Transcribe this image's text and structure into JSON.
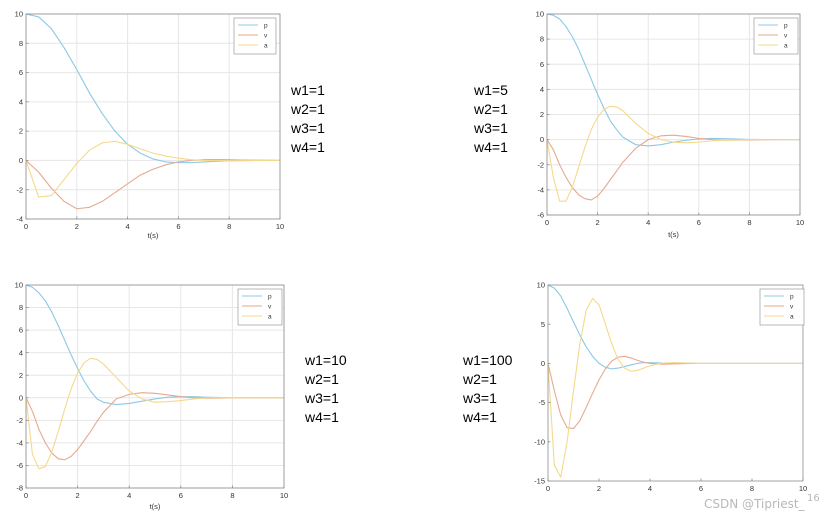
{
  "chart_data": [
    {
      "type": "line",
      "xlabel": "t(s)",
      "ylabel": "",
      "xlim": [
        0,
        10
      ],
      "ylim": [
        -4,
        10
      ],
      "xticks": [
        0,
        2,
        4,
        6,
        8,
        10
      ],
      "yticks": [
        -4,
        -2,
        0,
        2,
        4,
        6,
        8,
        10
      ],
      "grid": true,
      "legend_position": "top-right",
      "x": [
        0,
        0.5,
        1,
        1.5,
        2,
        2.5,
        3,
        3.5,
        4,
        4.5,
        5,
        5.5,
        6,
        6.5,
        7,
        7.5,
        8,
        8.5,
        9,
        9.5,
        10
      ],
      "series": [
        {
          "name": "p",
          "color": "#8cc8e6",
          "values": [
            10,
            9.8,
            9.0,
            7.7,
            6.2,
            4.6,
            3.2,
            2.0,
            1.1,
            0.5,
            0.1,
            -0.1,
            -0.15,
            -0.15,
            -0.1,
            -0.06,
            -0.03,
            -0.01,
            0,
            0,
            0
          ]
        },
        {
          "name": "v",
          "color": "#e6a98f",
          "values": [
            0,
            -0.8,
            -1.9,
            -2.8,
            -3.3,
            -3.2,
            -2.8,
            -2.2,
            -1.6,
            -1.0,
            -0.6,
            -0.3,
            -0.1,
            0,
            0.05,
            0.06,
            0.05,
            0.03,
            0.02,
            0.01,
            0
          ]
        },
        {
          "name": "a",
          "color": "#f5d98a",
          "values": [
            0,
            -2.5,
            -2.4,
            -1.3,
            -0.2,
            0.7,
            1.2,
            1.3,
            1.1,
            0.8,
            0.5,
            0.3,
            0.15,
            0.05,
            0,
            -0.02,
            -0.03,
            -0.02,
            -0.01,
            0,
            0
          ]
        }
      ]
    },
    {
      "type": "line",
      "xlabel": "t(s)",
      "ylabel": "",
      "xlim": [
        0,
        10
      ],
      "ylim": [
        -6,
        10
      ],
      "xticks": [
        0,
        2,
        4,
        6,
        8,
        10
      ],
      "yticks": [
        -6,
        -4,
        -2,
        0,
        2,
        4,
        6,
        8,
        10
      ],
      "grid": true,
      "legend_position": "top-right",
      "x": [
        0,
        0.25,
        0.5,
        0.75,
        1,
        1.25,
        1.5,
        1.75,
        2,
        2.25,
        2.5,
        2.75,
        3,
        3.5,
        4,
        4.5,
        5,
        5.5,
        6,
        6.5,
        7,
        8,
        9,
        10
      ],
      "series": [
        {
          "name": "p",
          "color": "#8cc8e6",
          "values": [
            10,
            9.9,
            9.6,
            9.0,
            8.2,
            7.2,
            6.0,
            4.8,
            3.6,
            2.5,
            1.5,
            0.8,
            0.2,
            -0.4,
            -0.5,
            -0.4,
            -0.2,
            -0.05,
            0.05,
            0.1,
            0.08,
            0.02,
            0,
            0
          ]
        },
        {
          "name": "v",
          "color": "#e6a98f",
          "values": [
            0,
            -0.8,
            -2.0,
            -3.0,
            -3.8,
            -4.4,
            -4.7,
            -4.8,
            -4.5,
            -3.9,
            -3.2,
            -2.5,
            -1.8,
            -0.7,
            0,
            0.3,
            0.35,
            0.25,
            0.1,
            0,
            -0.05,
            -0.03,
            0,
            0
          ]
        },
        {
          "name": "a",
          "color": "#f5d98a",
          "values": [
            0,
            -3.0,
            -4.9,
            -4.9,
            -3.8,
            -2.2,
            -0.6,
            0.8,
            1.8,
            2.4,
            2.65,
            2.6,
            2.3,
            1.3,
            0.5,
            0,
            -0.2,
            -0.25,
            -0.2,
            -0.1,
            -0.05,
            0,
            0,
            0
          ]
        }
      ]
    },
    {
      "type": "line",
      "xlabel": "t(s)",
      "ylabel": "",
      "xlim": [
        0,
        10
      ],
      "ylim": [
        -8,
        10
      ],
      "xticks": [
        0,
        2,
        4,
        6,
        8,
        10
      ],
      "yticks": [
        -8,
        -6,
        -4,
        -2,
        0,
        2,
        4,
        6,
        8,
        10
      ],
      "grid": true,
      "legend_position": "top-right",
      "x": [
        0,
        0.25,
        0.5,
        0.75,
        1,
        1.25,
        1.5,
        1.75,
        2,
        2.25,
        2.5,
        2.75,
        3,
        3.5,
        4,
        4.5,
        5,
        5.5,
        6,
        6.5,
        7,
        8,
        9,
        10
      ],
      "series": [
        {
          "name": "p",
          "color": "#8cc8e6",
          "values": [
            10,
            9.8,
            9.3,
            8.6,
            7.6,
            6.4,
            5.1,
            3.8,
            2.6,
            1.5,
            0.6,
            -0.1,
            -0.4,
            -0.6,
            -0.5,
            -0.3,
            -0.1,
            0.05,
            0.1,
            0.1,
            0.05,
            0,
            0,
            0
          ]
        },
        {
          "name": "v",
          "color": "#e6a98f",
          "values": [
            0,
            -1.2,
            -2.8,
            -4.0,
            -4.9,
            -5.4,
            -5.5,
            -5.2,
            -4.6,
            -3.8,
            -3.0,
            -2.1,
            -1.3,
            -0.1,
            0.3,
            0.45,
            0.4,
            0.25,
            0.1,
            0,
            -0.05,
            -0.02,
            0,
            0
          ]
        },
        {
          "name": "a",
          "color": "#f5d98a",
          "values": [
            0,
            -5.0,
            -6.3,
            -6.1,
            -4.8,
            -3.0,
            -1.0,
            0.8,
            2.2,
            3.1,
            3.5,
            3.4,
            3.0,
            1.8,
            0.6,
            -0.1,
            -0.4,
            -0.35,
            -0.25,
            -0.1,
            0,
            0,
            0,
            0
          ]
        }
      ]
    },
    {
      "type": "line",
      "xlabel": "",
      "ylabel": "",
      "xlim": [
        0,
        10
      ],
      "ylim": [
        -15,
        10
      ],
      "xticks": [
        0,
        2,
        4,
        6,
        8,
        10
      ],
      "yticks": [
        -15,
        -10,
        -5,
        0,
        5,
        10
      ],
      "grid": false,
      "legend_position": "top-right",
      "x": [
        0,
        0.25,
        0.5,
        0.75,
        1,
        1.25,
        1.5,
        1.75,
        2,
        2.25,
        2.5,
        2.75,
        3,
        3.25,
        3.5,
        3.75,
        4,
        4.5,
        5,
        5.5,
        6,
        7,
        8,
        9,
        10
      ],
      "series": [
        {
          "name": "p",
          "color": "#8cc8e6",
          "values": [
            10,
            9.6,
            8.6,
            7.0,
            5.3,
            3.6,
            2.1,
            0.9,
            0.0,
            -0.5,
            -0.7,
            -0.6,
            -0.4,
            -0.2,
            0,
            0.1,
            0.1,
            0.05,
            0,
            0,
            0,
            0,
            0,
            0,
            0
          ]
        },
        {
          "name": "v",
          "color": "#e6a98f",
          "values": [
            0,
            -3.5,
            -6.6,
            -8.2,
            -8.3,
            -7.3,
            -5.6,
            -3.8,
            -2.1,
            -0.7,
            0.3,
            0.8,
            0.9,
            0.7,
            0.4,
            0.15,
            0.0,
            -0.1,
            -0.05,
            0,
            0,
            0,
            0,
            0,
            0
          ]
        },
        {
          "name": "a",
          "color": "#f5d98a",
          "values": [
            0,
            -13.0,
            -14.5,
            -10.0,
            -3.5,
            2.5,
            6.8,
            8.3,
            7.5,
            5.0,
            2.5,
            0.5,
            -0.6,
            -1.0,
            -0.9,
            -0.6,
            -0.3,
            0.05,
            0.1,
            0.05,
            0,
            0,
            0,
            0,
            0
          ]
        }
      ]
    }
  ],
  "weights": [
    [
      "w1=1",
      "w2=1",
      "w3=1",
      "w4=1"
    ],
    [
      "w1=5",
      "w2=1",
      "w3=1",
      "w4=1"
    ],
    [
      "w1=10",
      "w2=1",
      "w3=1",
      "w4=1"
    ],
    [
      "w1=100",
      "w2=1",
      "w3=1",
      "w4=1"
    ]
  ],
  "watermark": {
    "text": "CSDN @Tipriest_",
    "sup": "16"
  }
}
